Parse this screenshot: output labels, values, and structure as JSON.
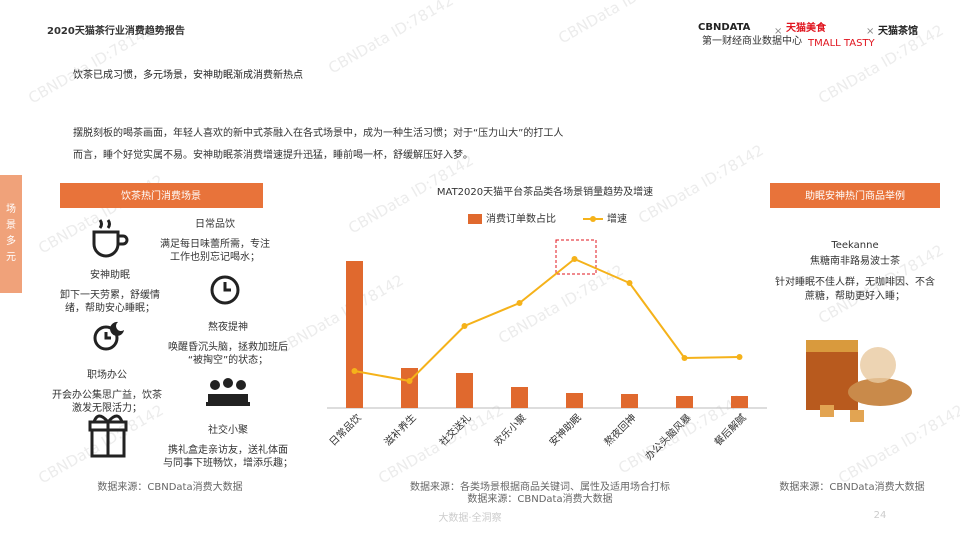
{
  "header": {
    "report": "2020天猫茶行业消费趋势报告",
    "logo1": "CBNDATA",
    "logo1_sub": "第一财经商业数据中心",
    "x": "×",
    "logo2": "天猫美食",
    "logo2_sub": "TMALL TASTY",
    "logo3": "天猫茶馆"
  },
  "watermark": "CBNData ID:78142",
  "title": "饮茶已成习惯，多元场景，安神助眠渐成消费新热点",
  "intro": [
    "摆脱刻板的喝茶画面，年轻人喜欢的新中式茶融入在各式场景中，成为一种生活习惯；对于“压力山大”的打工人",
    "而言，睡个好觉实属不易。安神助眠茶消费增速提升迅猛，睡前喝一杯，舒缓解压好入梦。"
  ],
  "side_tab": [
    "场",
    "景",
    "多",
    "元"
  ],
  "left_panel": {
    "heading": "饮茶热门消费场景",
    "items": [
      {
        "name": "日常品饮",
        "desc": [
          "满足每日味蕾所需，专注",
          "工作也别忘记喝水；"
        ]
      },
      {
        "name": "安神助眠",
        "desc": [
          "卸下一天劳累，舒缓情",
          "绪，帮助安心睡眠；"
        ]
      },
      {
        "name": "熬夜提神",
        "desc": [
          "唤醒昏沉头脑，拯救加班后",
          "“被掏空”的状态；"
        ]
      },
      {
        "name": "职场办公",
        "desc": [
          "开会办公集思广益，饮茶",
          "激发无限活力；"
        ]
      },
      {
        "name": "社交小聚",
        "desc": [
          "携礼盒走亲访友，送礼体面",
          "与同事下班畅饮，增添乐趣；"
        ]
      }
    ],
    "source": "数据来源：CBNData消费大数据"
  },
  "chart_data": {
    "type": "bar",
    "title": "MAT2020天猫平台茶品类各场景销量趋势及增速",
    "categories": [
      "日常品饮",
      "滋补养生",
      "社交送礼",
      "欢乐小聚",
      "安神助眠",
      "熬夜回神",
      "办公头脑风暴",
      "餐后解腻"
    ],
    "series": [
      {
        "name": "消费订单数占比",
        "type": "bar",
        "color": "#e0692e",
        "values": [
          147,
          40,
          35,
          21,
          15,
          14,
          12,
          12
        ]
      },
      {
        "name": "增速",
        "type": "line",
        "color": "#f5b21a",
        "values": [
          37,
          27,
          82,
          105,
          149,
          125,
          50,
          51
        ]
      }
    ],
    "sources": [
      "数据来源：各类场景根据商品关键词、属性及适用场合打标",
      "数据来源：CBNData消费大数据"
    ]
  },
  "right_panel": {
    "heading": "助眠安神热门商品举例",
    "brand": "Teekanne",
    "product": "焦糖南非路易波士茶",
    "desc": [
      "针对睡眠不佳人群，无咖啡因、不含",
      "蔗糖，帮助更好入睡；"
    ],
    "source": "数据来源：CBNData消费大数据"
  },
  "footer": {
    "tagline": "大数据·全洞察",
    "page": "24"
  }
}
